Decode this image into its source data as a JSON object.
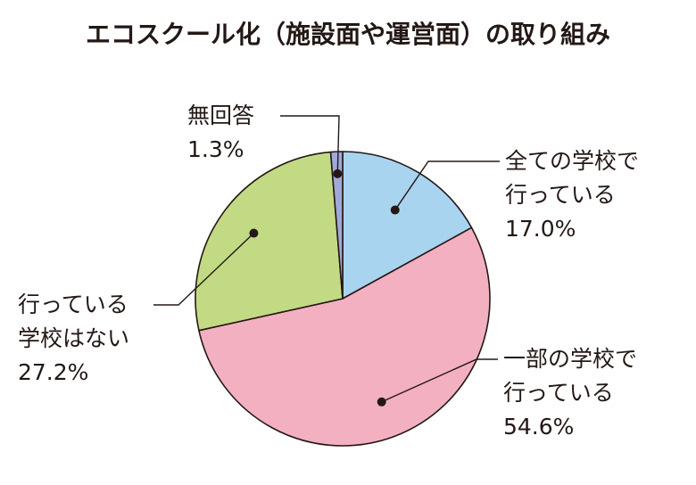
{
  "chart_data": {
    "type": "pie",
    "title": "エコスクール化（施設面や運営面）の取り組み",
    "unit": "%",
    "slices": [
      {
        "name_lines": [
          "全ての学校で",
          "行っている"
        ],
        "value": 17.0,
        "value_label": "17.0%",
        "color": "#a9d4f0"
      },
      {
        "name_lines": [
          "一部の学校で",
          "行っている"
        ],
        "value": 54.6,
        "value_label": "54.6%",
        "color": "#f3b0c1"
      },
      {
        "name_lines": [
          "行っている",
          "学校はない"
        ],
        "value": 27.2,
        "value_label": "27.2%",
        "color": "#c3da84"
      },
      {
        "name_lines": [
          "無回答"
        ],
        "value": 1.3,
        "value_label": "1.3%",
        "color": "#9faad8"
      }
    ],
    "start_angle_deg": 0,
    "direction": "clockwise",
    "outline_color": "#231815",
    "text_color": "#231815"
  }
}
